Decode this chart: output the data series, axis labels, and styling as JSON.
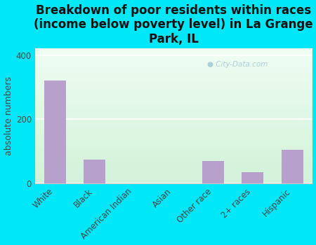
{
  "title": "Breakdown of poor residents within races\n(income below poverty level) in La Grange\nPark, IL",
  "categories": [
    "White",
    "Black",
    "American Indian",
    "Asian",
    "Other race",
    "2+ races",
    "Hispanic"
  ],
  "values": [
    320,
    75,
    0,
    0,
    70,
    35,
    105
  ],
  "bar_color": "#b8a0cc",
  "bar_edge_color": "#d0b8e0",
  "ylabel": "absolute numbers",
  "ylim": [
    0,
    420
  ],
  "yticks": [
    0,
    200,
    400
  ],
  "background_color": "#00e8f8",
  "plot_bg_left_top": "#e8f5ee",
  "plot_bg_right_bottom": "#d8f0d8",
  "title_fontsize": 12,
  "ylabel_fontsize": 9,
  "tick_fontsize": 8.5,
  "watermark": "City-Data.com",
  "watermark_color": "#a0c8d8",
  "grid_color": "#ffffff",
  "spine_color": "#cccccc"
}
